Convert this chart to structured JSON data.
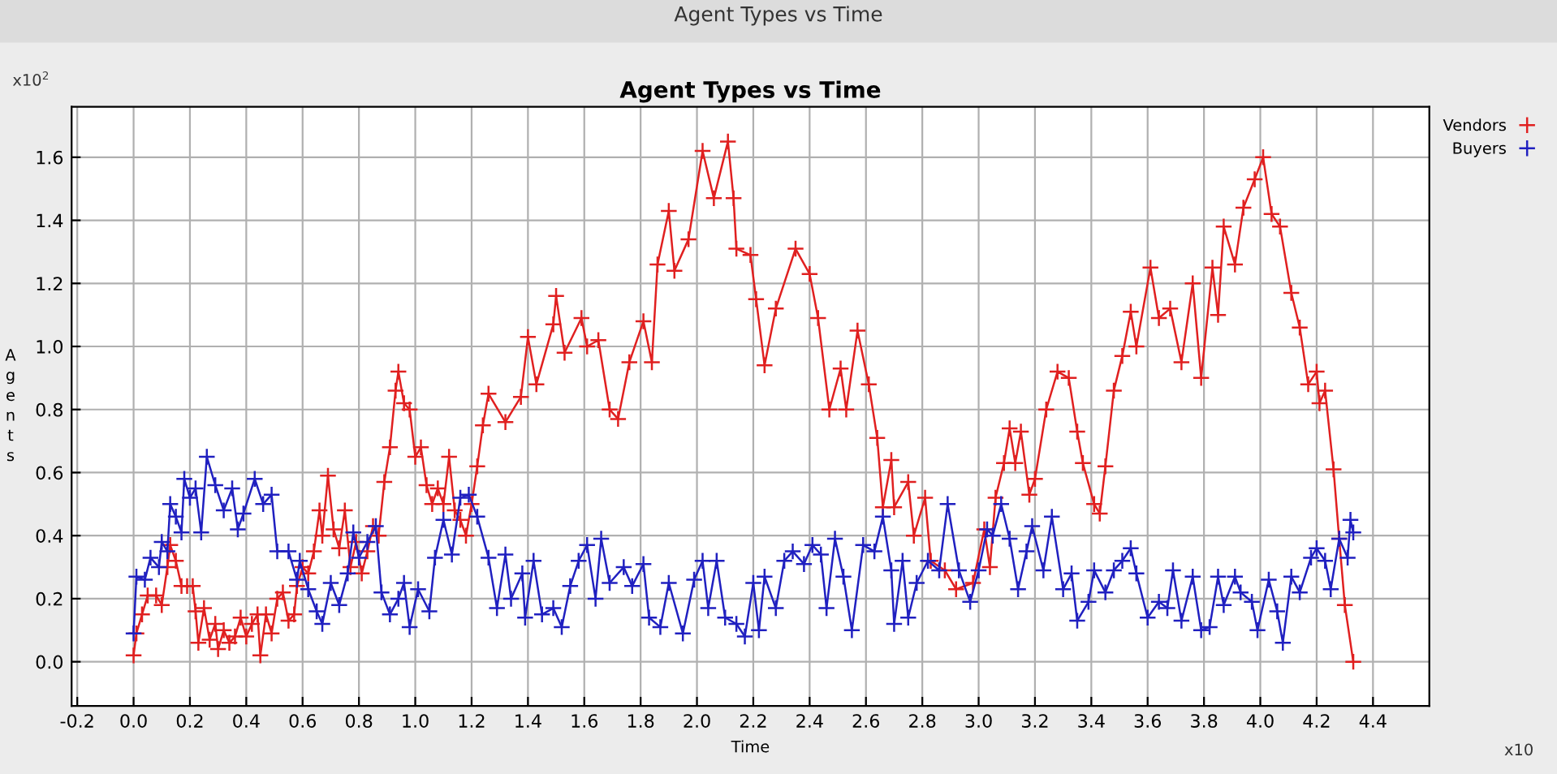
{
  "chart_data": {
    "type": "line",
    "title": "Agent Types vs Time",
    "xlabel": "Time",
    "ylabel": "Agents",
    "annotations": [
      "x10$^{2}$",
      "x10",
      "Agent Types vs Time"
    ],
    "xlim": [
      -0.22,
      4.6
    ],
    "ylim": [
      -0.14,
      1.76
    ],
    "xticks": [
      {
        "value": -0.2,
        "label": "-0.2"
      },
      {
        "value": 0,
        "label": "0.0"
      },
      0.2,
      0.4,
      0.6,
      0.8,
      {
        "value": 1,
        "label": "1.0"
      },
      1.2,
      1.4,
      1.6,
      1.8,
      {
        "value": 2,
        "label": "2.0"
      },
      2.2,
      2.4,
      2.6,
      2.8,
      {
        "value": 3,
        "label": "3.0"
      },
      3.2,
      3.4,
      3.6,
      3.8,
      {
        "value": 4,
        "label": "4.0"
      },
      4.2,
      4.4
    ],
    "yticks": [
      {
        "value": 0,
        "label": "0.0"
      },
      0.2,
      0.4,
      0.6,
      0.8,
      {
        "value": 1,
        "label": "1.0"
      },
      1.2,
      1.4,
      1.6
    ],
    "grid": true,
    "legend": "top right",
    "marker": "cross",
    "line_style": "solid",
    "series": [
      {
        "name": "Vendors",
        "color": "#e02020",
        "x": [
          0.0,
          0.01,
          0.03,
          0.05,
          0.08,
          0.1,
          0.12,
          0.13,
          0.15,
          0.17,
          0.19,
          0.21,
          0.22,
          0.23,
          0.25,
          0.27,
          0.29,
          0.3,
          0.32,
          0.34,
          0.36,
          0.38,
          0.4,
          0.42,
          0.44,
          0.45,
          0.47,
          0.49,
          0.51,
          0.53,
          0.55,
          0.57,
          0.58,
          0.6,
          0.62,
          0.64,
          0.66,
          0.67,
          0.69,
          0.71,
          0.73,
          0.75,
          0.77,
          0.79,
          0.81,
          0.83,
          0.85,
          0.87,
          0.89,
          0.91,
          0.93,
          0.94,
          0.96,
          0.98,
          1.0,
          1.02,
          1.04,
          1.06,
          1.08,
          1.1,
          1.12,
          1.14,
          1.16,
          1.18,
          1.2,
          1.22,
          1.24,
          1.26,
          1.32,
          1.375,
          1.4,
          1.43,
          1.49,
          1.5,
          1.53,
          1.59,
          1.61,
          1.65,
          1.69,
          1.72,
          1.76,
          1.81,
          1.84,
          1.86,
          1.9,
          1.92,
          1.97,
          2.02,
          2.06,
          2.11,
          2.13,
          2.14,
          2.19,
          2.21,
          2.24,
          2.28,
          2.35,
          2.4,
          2.43,
          2.47,
          2.51,
          2.53,
          2.57,
          2.61,
          2.64,
          2.66,
          2.69,
          2.7,
          2.75,
          2.77,
          2.81,
          2.83,
          2.88,
          2.92,
          2.98,
          3.02,
          3.04,
          3.06,
          3.09,
          3.11,
          3.13,
          3.15,
          3.18,
          3.2,
          3.24,
          3.28,
          3.32,
          3.35,
          3.37,
          3.41,
          3.43,
          3.45,
          3.48,
          3.51,
          3.54,
          3.56,
          3.61,
          3.64,
          3.68,
          3.72,
          3.76,
          3.79,
          3.83,
          3.85,
          3.87,
          3.91,
          3.94,
          3.98,
          4.01,
          4.04,
          4.07,
          4.11,
          4.14,
          4.17,
          4.2,
          4.21,
          4.23,
          4.26,
          4.28,
          4.3,
          4.33
        ],
        "values": [
          0.02,
          0.09,
          0.15,
          0.21,
          0.21,
          0.18,
          0.3,
          0.37,
          0.32,
          0.24,
          0.24,
          0.24,
          0.16,
          0.06,
          0.17,
          0.07,
          0.12,
          0.04,
          0.1,
          0.06,
          0.08,
          0.14,
          0.08,
          0.12,
          0.15,
          0.02,
          0.15,
          0.09,
          0.2,
          0.22,
          0.13,
          0.15,
          0.24,
          0.3,
          0.28,
          0.35,
          0.48,
          0.4,
          0.59,
          0.42,
          0.36,
          0.48,
          0.3,
          0.38,
          0.28,
          0.35,
          0.43,
          0.4,
          0.57,
          0.68,
          0.86,
          0.92,
          0.82,
          0.8,
          0.65,
          0.68,
          0.56,
          0.5,
          0.55,
          0.5,
          0.65,
          0.48,
          0.45,
          0.4,
          0.5,
          0.62,
          0.75,
          0.85,
          0.76,
          0.84,
          1.03,
          0.88,
          1.07,
          1.16,
          0.98,
          1.09,
          1.0,
          1.02,
          0.8,
          0.77,
          0.95,
          1.08,
          0.95,
          1.26,
          1.43,
          1.24,
          1.34,
          1.62,
          1.47,
          1.65,
          1.47,
          1.31,
          1.29,
          1.15,
          0.94,
          1.12,
          1.31,
          1.23,
          1.09,
          0.8,
          0.93,
          0.8,
          1.05,
          0.88,
          0.71,
          0.49,
          0.64,
          0.49,
          0.57,
          0.4,
          0.52,
          0.32,
          0.29,
          0.23,
          0.25,
          0.42,
          0.3,
          0.52,
          0.63,
          0.74,
          0.63,
          0.73,
          0.53,
          0.58,
          0.8,
          0.92,
          0.9,
          0.73,
          0.63,
          0.5,
          0.47,
          0.62,
          0.86,
          0.97,
          1.11,
          1.0,
          1.25,
          1.09,
          1.12,
          0.95,
          1.2,
          0.9,
          1.25,
          1.1,
          1.38,
          1.26,
          1.44,
          1.53,
          1.6,
          1.42,
          1.38,
          1.17,
          1.06,
          0.88,
          0.92,
          0.82,
          0.86,
          0.61,
          0.39,
          0.18,
          0.0
        ]
      },
      {
        "name": "Buyers",
        "color": "#2020c0",
        "x": [
          0.0,
          0.01,
          0.04,
          0.06,
          0.09,
          0.1,
          0.12,
          0.13,
          0.15,
          0.17,
          0.18,
          0.2,
          0.22,
          0.24,
          0.26,
          0.29,
          0.32,
          0.35,
          0.37,
          0.39,
          0.43,
          0.46,
          0.49,
          0.51,
          0.55,
          0.58,
          0.59,
          0.62,
          0.65,
          0.67,
          0.7,
          0.73,
          0.76,
          0.78,
          0.8,
          0.83,
          0.86,
          0.88,
          0.91,
          0.94,
          0.96,
          0.98,
          1.01,
          1.05,
          1.07,
          1.1,
          1.13,
          1.16,
          1.19,
          1.22,
          1.26,
          1.29,
          1.32,
          1.34,
          1.38,
          1.39,
          1.42,
          1.45,
          1.49,
          1.52,
          1.55,
          1.58,
          1.61,
          1.64,
          1.66,
          1.69,
          1.74,
          1.77,
          1.81,
          1.83,
          1.87,
          1.9,
          1.95,
          1.99,
          2.02,
          2.04,
          2.07,
          2.1,
          2.14,
          2.17,
          2.2,
          2.22,
          2.24,
          2.28,
          2.31,
          2.34,
          2.38,
          2.41,
          2.44,
          2.46,
          2.49,
          2.52,
          2.55,
          2.59,
          2.63,
          2.66,
          2.69,
          2.7,
          2.73,
          2.75,
          2.78,
          2.82,
          2.86,
          2.89,
          2.93,
          2.97,
          3.0,
          3.03,
          3.05,
          3.08,
          3.11,
          3.14,
          3.17,
          3.19,
          3.23,
          3.26,
          3.3,
          3.33,
          3.35,
          3.39,
          3.41,
          3.45,
          3.48,
          3.51,
          3.54,
          3.56,
          3.6,
          3.64,
          3.67,
          3.69,
          3.72,
          3.76,
          3.79,
          3.82,
          3.85,
          3.87,
          3.91,
          3.93,
          3.97,
          3.99,
          4.03,
          4.06,
          4.08,
          4.11,
          4.14,
          4.18,
          4.2,
          4.23,
          4.25,
          4.28,
          4.31,
          4.32,
          4.33
        ],
        "values": [
          0.09,
          0.27,
          0.26,
          0.33,
          0.3,
          0.38,
          0.35,
          0.5,
          0.46,
          0.41,
          0.58,
          0.52,
          0.55,
          0.41,
          0.65,
          0.56,
          0.48,
          0.55,
          0.42,
          0.47,
          0.58,
          0.5,
          0.53,
          0.35,
          0.35,
          0.26,
          0.32,
          0.23,
          0.16,
          0.12,
          0.25,
          0.18,
          0.28,
          0.41,
          0.33,
          0.38,
          0.43,
          0.22,
          0.15,
          0.2,
          0.25,
          0.11,
          0.23,
          0.16,
          0.33,
          0.45,
          0.34,
          0.52,
          0.53,
          0.46,
          0.33,
          0.17,
          0.34,
          0.2,
          0.28,
          0.14,
          0.32,
          0.15,
          0.17,
          0.11,
          0.24,
          0.32,
          0.37,
          0.2,
          0.39,
          0.25,
          0.3,
          0.24,
          0.31,
          0.14,
          0.11,
          0.25,
          0.09,
          0.26,
          0.32,
          0.17,
          0.32,
          0.14,
          0.12,
          0.08,
          0.25,
          0.1,
          0.27,
          0.17,
          0.32,
          0.35,
          0.31,
          0.37,
          0.34,
          0.17,
          0.39,
          0.27,
          0.1,
          0.37,
          0.35,
          0.46,
          0.29,
          0.12,
          0.32,
          0.14,
          0.25,
          0.32,
          0.29,
          0.5,
          0.29,
          0.19,
          0.29,
          0.42,
          0.4,
          0.5,
          0.39,
          0.23,
          0.35,
          0.43,
          0.29,
          0.46,
          0.23,
          0.28,
          0.13,
          0.19,
          0.29,
          0.22,
          0.29,
          0.32,
          0.36,
          0.28,
          0.14,
          0.19,
          0.17,
          0.29,
          0.13,
          0.27,
          0.1,
          0.11,
          0.27,
          0.18,
          0.27,
          0.22,
          0.19,
          0.1,
          0.26,
          0.16,
          0.06,
          0.27,
          0.22,
          0.33,
          0.36,
          0.32,
          0.23,
          0.39,
          0.33,
          0.45,
          0.41
        ]
      }
    ]
  }
}
